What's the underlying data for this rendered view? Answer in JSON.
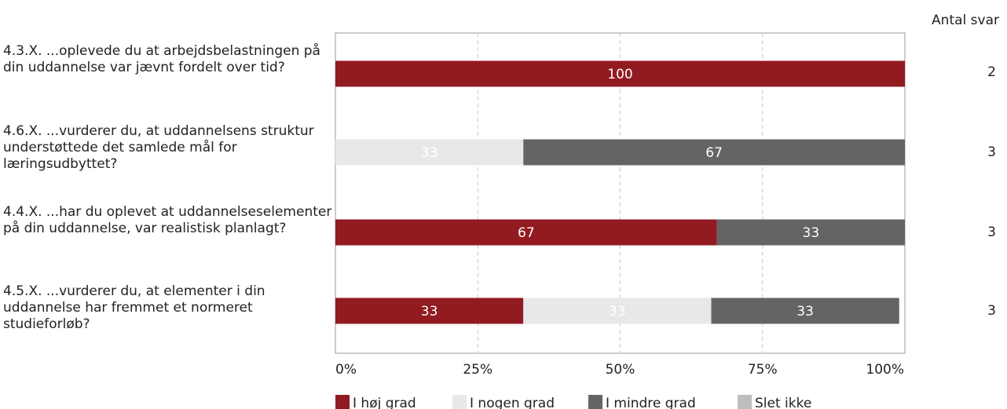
{
  "chart_data": {
    "type": "bar",
    "orientation": "horizontal",
    "stacked": true,
    "count_header": "Antal svar",
    "x_ticks": [
      "0%",
      "25%",
      "50%",
      "75%",
      "100%"
    ],
    "xlim": [
      0,
      100
    ],
    "grid": true,
    "legend_position": "bottom",
    "categories": [
      "4.3.X. ...oplevede du at arbejdsbelastningen på din uddannelse var jævnt fordelt over tid?",
      "4.6.X. ...vurderer du, at uddannelsens struktur understøttede det samlede mål for læringsudbyttet?",
      "4.4.X. ...har du oplevet at uddannelseselementer på din uddannelse, var realistisk planlagt?",
      "4.5.X. ...vurderer du, at elementer i din uddannelse har fremmet et normeret studieforløb?"
    ],
    "counts": [
      "2",
      "3",
      "3",
      "3"
    ],
    "series": [
      {
        "name": "I høj grad",
        "color": "#921a21",
        "label_color": "#ffffff",
        "values": [
          100,
          0,
          67,
          33
        ]
      },
      {
        "name": "I nogen grad",
        "color": "#e8e8e8",
        "label_color": "#ffffff",
        "values": [
          0,
          33,
          0,
          33
        ]
      },
      {
        "name": "I mindre grad",
        "color": "#646464",
        "label_color": "#ffffff",
        "values": [
          0,
          67,
          33,
          33
        ]
      },
      {
        "name": "Slet ikke",
        "color": "#bdbdbd",
        "label_color": "#ffffff",
        "values": [
          0,
          0,
          0,
          0
        ]
      }
    ]
  }
}
